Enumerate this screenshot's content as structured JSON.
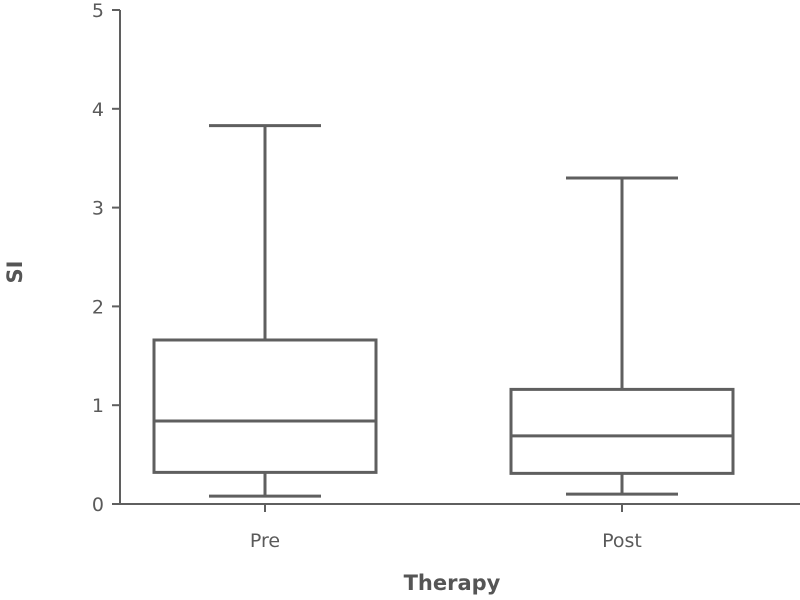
{
  "chart_data": {
    "type": "box",
    "title": "",
    "xlabel": "Therapy",
    "ylabel": "SI",
    "ylim": [
      0,
      5
    ],
    "yticks": [
      0,
      1,
      2,
      3,
      4,
      5
    ],
    "grid": false,
    "categories": [
      "Pre",
      "Post"
    ],
    "boxes": [
      {
        "category": "Pre",
        "whisker_low": 0.08,
        "q1": 0.32,
        "median": 0.84,
        "q3": 1.66,
        "whisker_high": 3.83
      },
      {
        "category": "Post",
        "whisker_low": 0.1,
        "q1": 0.31,
        "median": 0.69,
        "q3": 1.16,
        "whisker_high": 3.3
      }
    ],
    "colors": {
      "stroke": "#5f5f5f",
      "text": "#5a5a5a"
    }
  }
}
